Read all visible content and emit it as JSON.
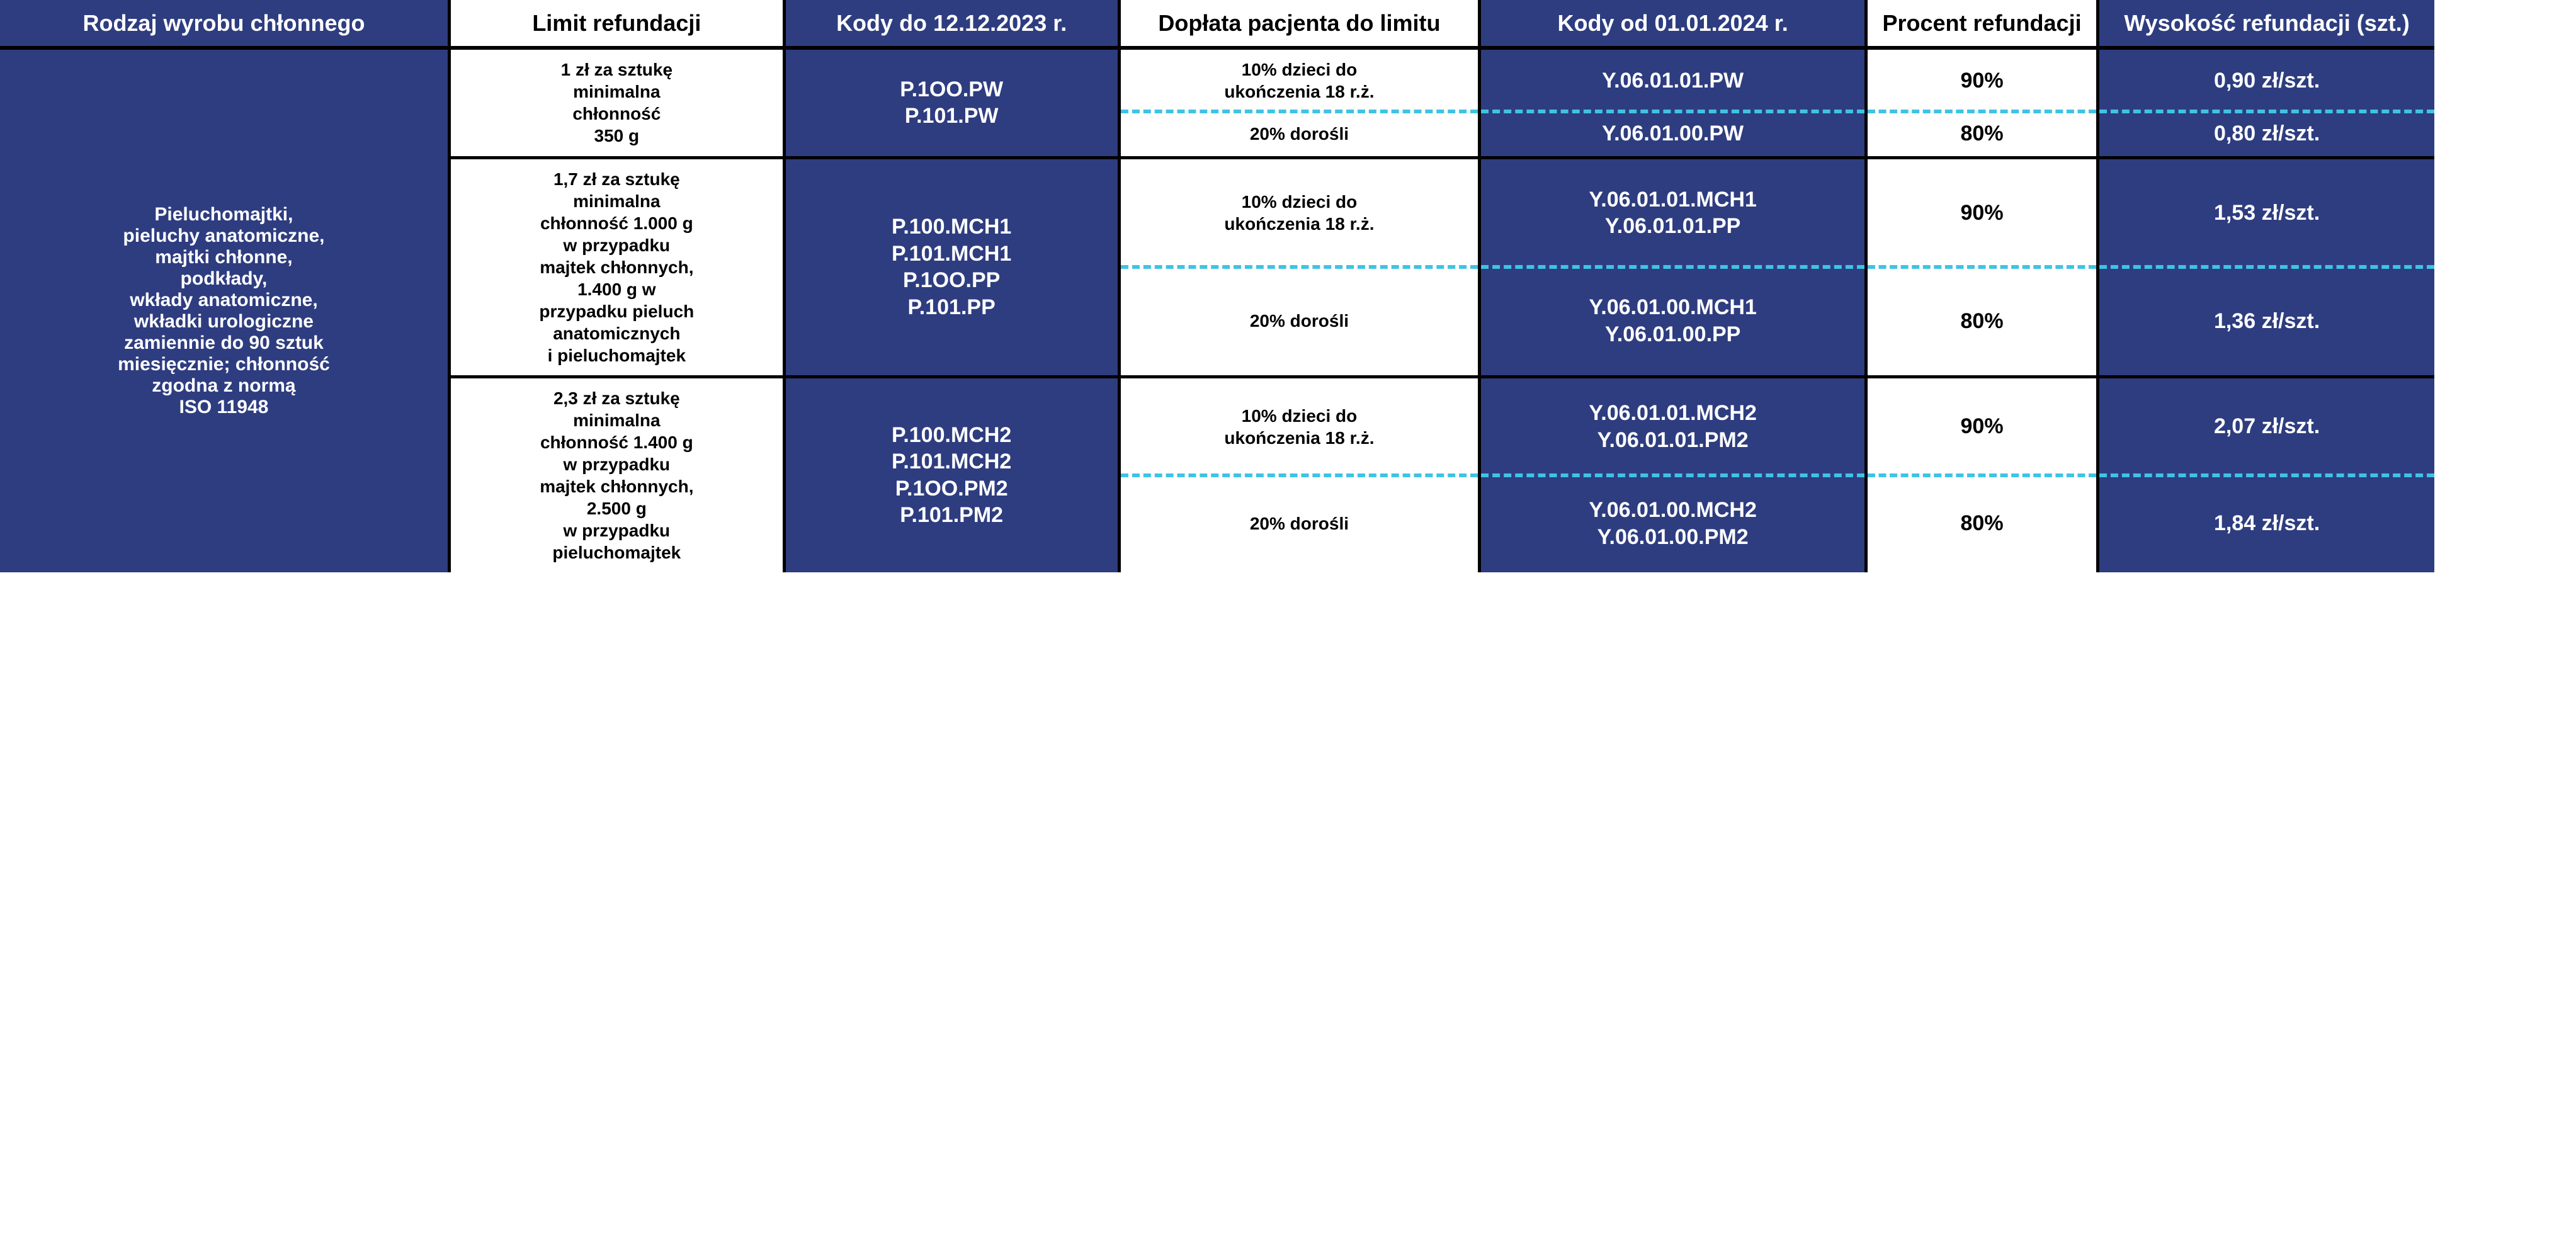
{
  "colors": {
    "dark_bg": "#2e3d80",
    "dash": "#3fc3e4",
    "black": "#000000",
    "white": "#ffffff"
  },
  "headers": {
    "c0": "Rodzaj wyrobu chłonnego",
    "c1": "Limit refundacji",
    "c2": "Kody do 12.12.2023 r.",
    "c3": "Dopłata pacjenta do limitu",
    "c4": "Kody od 01.01.2024 r.",
    "c5": "Procent refundacji",
    "c6": "Wysokość refundacji (szt.)"
  },
  "row_category": "Pieluchomajtki,\npieluchy anatomiczne,\nmajtki chłonne,\npodkłady,\nwkłady anatomiczne,\nwkładki urologiczne\nzamiennie do 90 sztuk\nmiesięcznie; chłonność\nzgodna z normą\nISO 11948",
  "groups": [
    {
      "limit": "1 zł za sztukę\nminimalna\nchłonność\n350 g",
      "codes_old": "P.1OO.PW\nP.101.PW",
      "sub": [
        {
          "doplata": "10% dzieci do\nukończenia 18 r.ż.",
          "codes_new": "Y.06.01.01.PW",
          "procent": "90%",
          "wysokosc": "0,90 zł/szt."
        },
        {
          "doplata": "20% dorośli",
          "codes_new": "Y.06.01.00.PW",
          "procent": "80%",
          "wysokosc": "0,80 zł/szt."
        }
      ]
    },
    {
      "limit": "1,7 zł za sztukę\nminimalna\nchłonność 1.000 g\nw przypadku\nmajtek chłonnych,\n1.400 g w\nprzypadku pieluch\nanatomicznych\ni pieluchomajtek",
      "codes_old": "P.100.MCH1\nP.101.MCH1\nP.1OO.PP\nP.101.PP",
      "sub": [
        {
          "doplata": "10% dzieci do\nukończenia 18 r.ż.",
          "codes_new": "Y.06.01.01.MCH1\nY.06.01.01.PP",
          "procent": "90%",
          "wysokosc": "1,53 zł/szt."
        },
        {
          "doplata": "20% dorośli",
          "codes_new": "Y.06.01.00.MCH1\nY.06.01.00.PP",
          "procent": "80%",
          "wysokosc": "1,36 zł/szt."
        }
      ]
    },
    {
      "limit": "2,3 zł za sztukę\nminimalna\nchłonność 1.400 g\nw przypadku\nmajtek chłonnych,\n2.500 g\nw przypadku\npieluchomajtek",
      "codes_old": "P.100.MCH2\nP.101.MCH2\nP.1OO.PM2\nP.101.PM2",
      "sub": [
        {
          "doplata": "10% dzieci do\nukończenia 18 r.ż.",
          "codes_new": "Y.06.01.01.MCH2\nY.06.01.01.PM2",
          "procent": "90%",
          "wysokosc": "2,07 zł/szt."
        },
        {
          "doplata": "20% dorośli",
          "codes_new": "Y.06.01.00.MCH2\nY.06.01.00.PM2",
          "procent": "80%",
          "wysokosc": "1,84 zł/szt."
        }
      ]
    }
  ]
}
